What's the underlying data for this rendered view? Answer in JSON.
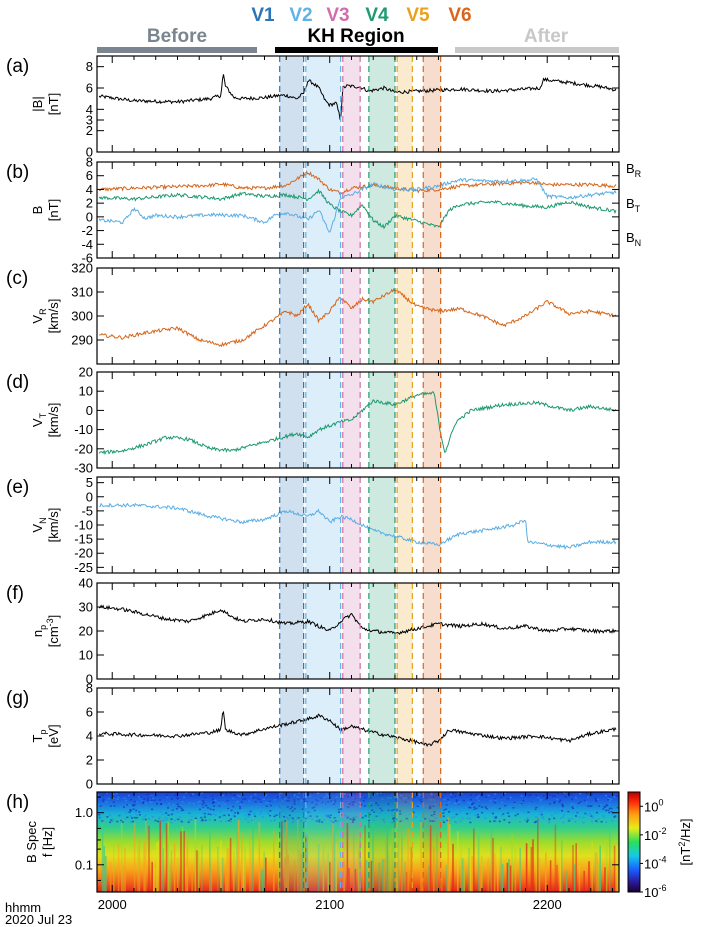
{
  "colors": {
    "V1": "#2b74b8",
    "V2": "#5fb3e6",
    "V3": "#cf6fa8",
    "V4": "#1f9a72",
    "V5": "#e8a21e",
    "V6": "#d9661a",
    "before": "#7b858f",
    "kh": "#000000",
    "after": "#c8c8c8",
    "orange": "#d6661c",
    "green": "#1d9a6c",
    "blue": "#5aaee3",
    "black": "#000000"
  },
  "header": {
    "before_label": "Before",
    "kh_label": "KH Region",
    "after_label": "After"
  },
  "intervals": [
    {
      "name": "V1",
      "start": 2077,
      "end": 2088
    },
    {
      "name": "V2",
      "start": 2089,
      "end": 2105
    },
    {
      "name": "V3",
      "start": 2106,
      "end": 2114
    },
    {
      "name": "V4",
      "start": 2118,
      "end": 2130
    },
    {
      "name": "V5",
      "start": 2131,
      "end": 2138
    },
    {
      "name": "V6",
      "start": 2143,
      "end": 2151
    }
  ],
  "time_axis": {
    "xlim": [
      1993,
      2233
    ],
    "ticks": [
      2000,
      2100,
      2200
    ],
    "label_line1": "hhmm",
    "label_line2": "2020 Jul 23"
  },
  "chart_data": [
    {
      "type": "line",
      "panel": "(a)",
      "ylabel": "|B|",
      "yunit": "[nT]",
      "ylim": [
        0,
        9
      ],
      "yticks": [
        0,
        2,
        3,
        4,
        6,
        8
      ],
      "series": [
        {
          "color_key": "black",
          "x": [
            1995,
            2010,
            2030,
            2045,
            2050,
            2051,
            2052,
            2056,
            2060,
            2070,
            2077,
            2080,
            2085,
            2088,
            2090,
            2092,
            2095,
            2098,
            2100,
            2103,
            2105,
            2106,
            2108,
            2114,
            2118,
            2125,
            2130,
            2140,
            2150,
            2160,
            2175,
            2190,
            2197,
            2198,
            2210,
            2225,
            2232
          ],
          "y": [
            5.2,
            4.8,
            4.7,
            5.0,
            5.3,
            7.4,
            6.2,
            5.1,
            5.0,
            5.1,
            5.3,
            5.3,
            5.0,
            5.5,
            6.7,
            6.5,
            6.0,
            4.8,
            4.4,
            4.6,
            3.0,
            6.0,
            6.2,
            6.1,
            5.7,
            6.0,
            5.6,
            5.7,
            5.8,
            5.9,
            5.7,
            5.9,
            6.0,
            6.8,
            6.5,
            6.1,
            5.8
          ]
        }
      ]
    },
    {
      "type": "line",
      "panel": "(b)",
      "ylabel": "B",
      "yunit": "[nT]",
      "ylim": [
        -6,
        8
      ],
      "yticks": [
        -6,
        -4,
        -2,
        0,
        2,
        4,
        6,
        8
      ],
      "legend": [
        {
          "text": "B",
          "sub": "R",
          "color_key": "orange"
        },
        {
          "text": "B",
          "sub": "T",
          "color_key": "green"
        },
        {
          "text": "B",
          "sub": "N",
          "color_key": "blue"
        }
      ],
      "series": [
        {
          "name": "BR",
          "color_key": "orange",
          "x": [
            1995,
            2010,
            2030,
            2045,
            2050,
            2060,
            2070,
            2080,
            2090,
            2095,
            2100,
            2105,
            2110,
            2120,
            2130,
            2140,
            2150,
            2160,
            2175,
            2190,
            2195,
            2200,
            2210,
            2220,
            2232
          ],
          "y": [
            4.0,
            4.2,
            4.4,
            4.6,
            4.8,
            4.2,
            4.2,
            4.6,
            6.5,
            5.5,
            4.0,
            3.5,
            4.2,
            4.6,
            4.2,
            3.8,
            4.0,
            4.5,
            4.8,
            5.0,
            5.0,
            4.7,
            4.7,
            4.7,
            4.5
          ]
        },
        {
          "name": "BT",
          "color_key": "green",
          "x": [
            1995,
            2010,
            2030,
            2045,
            2050,
            2060,
            2070,
            2080,
            2090,
            2095,
            2100,
            2105,
            2110,
            2115,
            2120,
            2125,
            2130,
            2140,
            2150,
            2155,
            2160,
            2175,
            2190,
            2200,
            2210,
            2220,
            2232
          ],
          "y": [
            2.8,
            2.6,
            3.2,
            2.8,
            2.6,
            3.4,
            3.0,
            3.2,
            2.6,
            3.8,
            1.8,
            0.8,
            0.2,
            1.8,
            -0.5,
            -1.5,
            0.2,
            -0.6,
            -1.5,
            1.0,
            1.8,
            2.2,
            1.6,
            1.4,
            2.2,
            1.4,
            0.8
          ]
        },
        {
          "name": "BN",
          "color_key": "blue",
          "x": [
            1995,
            2005,
            2010,
            2015,
            2020,
            2030,
            2045,
            2060,
            2070,
            2075,
            2080,
            2090,
            2095,
            2100,
            2105,
            2110,
            2120,
            2130,
            2140,
            2150,
            2155,
            2160,
            2175,
            2190,
            2195,
            2200,
            2210,
            2220,
            2232
          ],
          "y": [
            -0.5,
            -0.8,
            1.2,
            -0.2,
            0.2,
            0.0,
            0.3,
            0.2,
            -0.8,
            0.3,
            0.6,
            -0.4,
            1.0,
            -2.4,
            2.8,
            3.2,
            4.8,
            4.0,
            4.0,
            4.5,
            5.0,
            5.4,
            5.2,
            5.3,
            5.5,
            3.0,
            2.8,
            3.2,
            3.6
          ]
        }
      ]
    },
    {
      "type": "line",
      "panel": "(c)",
      "ylabel": "V",
      "ylabel_sub": "R",
      "yunit": "[km/s]",
      "ylim": [
        280,
        320
      ],
      "yticks": [
        290,
        300,
        310,
        320
      ],
      "series": [
        {
          "color_key": "orange",
          "x": [
            1995,
            2005,
            2015,
            2030,
            2040,
            2050,
            2060,
            2070,
            2080,
            2085,
            2090,
            2095,
            2100,
            2105,
            2110,
            2115,
            2120,
            2130,
            2140,
            2150,
            2160,
            2170,
            2180,
            2190,
            2200,
            2210,
            2220,
            2232
          ],
          "y": [
            292,
            291,
            293,
            295,
            290,
            288,
            290,
            296,
            302,
            300,
            305,
            298,
            302,
            308,
            303,
            307,
            306,
            311,
            304,
            302,
            303,
            300,
            296,
            300,
            306,
            301,
            302,
            300
          ]
        }
      ]
    },
    {
      "type": "line",
      "panel": "(d)",
      "ylabel": "V",
      "ylabel_sub": "T",
      "yunit": "[km/s]",
      "ylim": [
        -30,
        20
      ],
      "yticks": [
        -30,
        -20,
        -10,
        0,
        10,
        20
      ],
      "series": [
        {
          "color_key": "green",
          "x": [
            1995,
            2005,
            2015,
            2025,
            2035,
            2045,
            2055,
            2065,
            2075,
            2085,
            2090,
            2095,
            2100,
            2105,
            2110,
            2120,
            2130,
            2140,
            2148,
            2151,
            2153,
            2158,
            2165,
            2180,
            2195,
            2210,
            2220,
            2232
          ],
          "y": [
            -22,
            -21,
            -18,
            -14,
            -15,
            -20,
            -21,
            -18,
            -15,
            -12,
            -14,
            -10,
            -8,
            -6,
            -5,
            5,
            3,
            8,
            9,
            -12,
            -22,
            -6,
            0,
            3,
            4,
            0,
            2,
            0
          ]
        }
      ]
    },
    {
      "type": "line",
      "panel": "(e)",
      "ylabel": "V",
      "ylabel_sub": "N",
      "yunit": "[km/s]",
      "ylim": [
        -27,
        7
      ],
      "yticks": [
        -25,
        -20,
        -15,
        -10,
        -5,
        0,
        5
      ],
      "series": [
        {
          "color_key": "blue",
          "x": [
            1995,
            2010,
            2030,
            2045,
            2060,
            2070,
            2080,
            2090,
            2095,
            2100,
            2105,
            2110,
            2120,
            2130,
            2140,
            2150,
            2160,
            2170,
            2185,
            2190,
            2191,
            2200,
            2210,
            2220,
            2232
          ],
          "y": [
            -3,
            -3,
            -4,
            -7,
            -9,
            -8,
            -5,
            -7,
            -5,
            -9,
            -7,
            -8,
            -12,
            -14,
            -16,
            -17,
            -13,
            -12,
            -10,
            -8,
            -16,
            -17,
            -18,
            -16,
            -16
          ]
        }
      ]
    },
    {
      "type": "line",
      "panel": "(f)",
      "ylabel": "n",
      "ylabel_sub": "p",
      "yunit": "[cm",
      "yunit_sup": "-3",
      "yunit_tail": "]",
      "ylim": [
        0,
        40
      ],
      "yticks": [
        0,
        10,
        20,
        30,
        40
      ],
      "series": [
        {
          "color_key": "black",
          "x": [
            1995,
            2005,
            2015,
            2025,
            2035,
            2045,
            2050,
            2055,
            2060,
            2070,
            2080,
            2090,
            2095,
            2100,
            2105,
            2110,
            2115,
            2120,
            2130,
            2140,
            2150,
            2160,
            2170,
            2180,
            2190,
            2200,
            2210,
            2220,
            2232
          ],
          "y": [
            30,
            29,
            27,
            25,
            24,
            27,
            29,
            26,
            24,
            25,
            23,
            24,
            22,
            20,
            24,
            27,
            21,
            20,
            19,
            21,
            23,
            22,
            23,
            21,
            22,
            20,
            21,
            20,
            20
          ]
        }
      ]
    },
    {
      "type": "line",
      "panel": "(g)",
      "ylabel": "T",
      "ylabel_sub": "p",
      "yunit": "[eV]",
      "ylim": [
        0,
        8
      ],
      "yticks": [
        0,
        2,
        4,
        6,
        8
      ],
      "series": [
        {
          "color_key": "black",
          "x": [
            1995,
            2010,
            2030,
            2045,
            2050,
            2051,
            2052,
            2060,
            2070,
            2080,
            2090,
            2095,
            2100,
            2105,
            2110,
            2120,
            2130,
            2140,
            2145,
            2150,
            2155,
            2165,
            2180,
            2195,
            2210,
            2220,
            2232
          ],
          "y": [
            4.2,
            4.1,
            4.0,
            4.3,
            4.5,
            6.4,
            4.5,
            4.1,
            4.6,
            5.0,
            5.4,
            5.7,
            5.3,
            4.5,
            4.8,
            4.3,
            3.9,
            3.5,
            3.2,
            3.6,
            4.5,
            4.2,
            3.8,
            4.0,
            3.6,
            4.2,
            4.6
          ]
        }
      ]
    },
    {
      "type": "heatmap",
      "panel": "(h)",
      "ylabel": "B Spec",
      "yunit": "f [Hz]",
      "yscale": "log",
      "ylim": [
        0.03,
        2.5
      ],
      "yticks": [
        0.1,
        1.0
      ],
      "ytick_labels": [
        "0.1",
        "1.0"
      ],
      "colorbar": {
        "label": "[nT",
        "label_sup": "2",
        "label_tail": "/Hz]",
        "scale": "log",
        "range": [
          1e-06,
          10.0
        ],
        "ticks": [
          {
            "value": 1,
            "base": "10",
            "exp": "0"
          },
          {
            "value": 0.01,
            "base": "10",
            "exp": "-2"
          },
          {
            "value": 0.0001,
            "base": "10",
            "exp": "-4"
          },
          {
            "value": 1e-06,
            "base": "10",
            "exp": "-6"
          }
        ]
      }
    }
  ]
}
